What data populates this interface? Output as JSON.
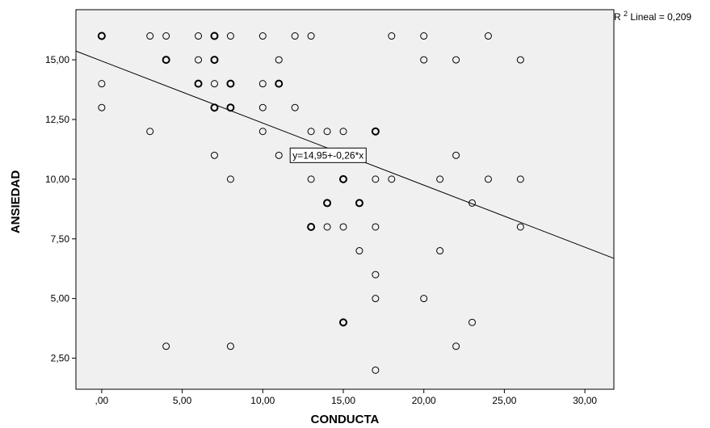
{
  "chart_data": {
    "type": "scatter",
    "xlabel": "CONDUCTA",
    "ylabel": "ANSIEDAD",
    "xlim": [
      -1.6,
      31.8
    ],
    "ylim": [
      1.2,
      17.1
    ],
    "x_ticks": [
      0,
      5,
      10,
      15,
      20,
      25,
      30
    ],
    "x_tick_labels": [
      ",00",
      "5,00",
      "10,00",
      "15,00",
      "20,00",
      "25,00",
      "30,00"
    ],
    "y_ticks": [
      2.5,
      5,
      7.5,
      10,
      12.5,
      15
    ],
    "y_tick_labels": [
      "2,50",
      "5,00",
      "7,50",
      "10,00",
      "12,50",
      "15,00"
    ],
    "grid": false,
    "plot_background": "#f0f0f0",
    "marker_color": "#000000",
    "fit_line": {
      "intercept": 14.95,
      "slope": -0.26,
      "color": "#000000"
    },
    "equation_label": "y=14,95+-0,26*x",
    "equation_anchor": {
      "x": 11.7,
      "y": 11
    },
    "r2_label": {
      "prefix": "R",
      "superscript": "2",
      "text": " Lineal = 0,209"
    },
    "points": [
      {
        "x": 0,
        "y": 16,
        "n": 2
      },
      {
        "x": 3,
        "y": 16,
        "n": 1
      },
      {
        "x": 4,
        "y": 16,
        "n": 1
      },
      {
        "x": 6,
        "y": 16,
        "n": 1
      },
      {
        "x": 7,
        "y": 16,
        "n": 3
      },
      {
        "x": 8,
        "y": 16,
        "n": 1
      },
      {
        "x": 10,
        "y": 16,
        "n": 1
      },
      {
        "x": 12,
        "y": 16,
        "n": 1
      },
      {
        "x": 13,
        "y": 16,
        "n": 1
      },
      {
        "x": 18,
        "y": 16,
        "n": 1
      },
      {
        "x": 20,
        "y": 16,
        "n": 1
      },
      {
        "x": 24,
        "y": 16,
        "n": 1
      },
      {
        "x": 4,
        "y": 15,
        "n": 2
      },
      {
        "x": 6,
        "y": 15,
        "n": 1
      },
      {
        "x": 7,
        "y": 15,
        "n": 2
      },
      {
        "x": 11,
        "y": 15,
        "n": 1
      },
      {
        "x": 20,
        "y": 15,
        "n": 1
      },
      {
        "x": 22,
        "y": 15,
        "n": 1
      },
      {
        "x": 26,
        "y": 15,
        "n": 1
      },
      {
        "x": 0,
        "y": 14,
        "n": 1
      },
      {
        "x": 6,
        "y": 14,
        "n": 2
      },
      {
        "x": 7,
        "y": 14,
        "n": 1
      },
      {
        "x": 8,
        "y": 14,
        "n": 2
      },
      {
        "x": 10,
        "y": 14,
        "n": 1
      },
      {
        "x": 11,
        "y": 14,
        "n": 2
      },
      {
        "x": 0,
        "y": 13,
        "n": 1
      },
      {
        "x": 7,
        "y": 13,
        "n": 2
      },
      {
        "x": 8,
        "y": 13,
        "n": 2
      },
      {
        "x": 10,
        "y": 13,
        "n": 1
      },
      {
        "x": 12,
        "y": 13,
        "n": 1
      },
      {
        "x": 3,
        "y": 12,
        "n": 1
      },
      {
        "x": 10,
        "y": 12,
        "n": 1
      },
      {
        "x": 13,
        "y": 12,
        "n": 1
      },
      {
        "x": 14,
        "y": 12,
        "n": 1
      },
      {
        "x": 15,
        "y": 12,
        "n": 1
      },
      {
        "x": 17,
        "y": 12,
        "n": 2
      },
      {
        "x": 7,
        "y": 11,
        "n": 1
      },
      {
        "x": 11,
        "y": 11,
        "n": 1
      },
      {
        "x": 22,
        "y": 11,
        "n": 1
      },
      {
        "x": 8,
        "y": 10,
        "n": 1
      },
      {
        "x": 13,
        "y": 10,
        "n": 1
      },
      {
        "x": 15,
        "y": 10,
        "n": 2
      },
      {
        "x": 17,
        "y": 10,
        "n": 1
      },
      {
        "x": 18,
        "y": 10,
        "n": 1
      },
      {
        "x": 21,
        "y": 10,
        "n": 1
      },
      {
        "x": 24,
        "y": 10,
        "n": 1
      },
      {
        "x": 26,
        "y": 10,
        "n": 1
      },
      {
        "x": 14,
        "y": 9,
        "n": 2
      },
      {
        "x": 16,
        "y": 9,
        "n": 2
      },
      {
        "x": 23,
        "y": 9,
        "n": 1
      },
      {
        "x": 13,
        "y": 8,
        "n": 2
      },
      {
        "x": 14,
        "y": 8,
        "n": 1
      },
      {
        "x": 15,
        "y": 8,
        "n": 1
      },
      {
        "x": 17,
        "y": 8,
        "n": 1
      },
      {
        "x": 26,
        "y": 8,
        "n": 1
      },
      {
        "x": 16,
        "y": 7,
        "n": 1
      },
      {
        "x": 21,
        "y": 7,
        "n": 1
      },
      {
        "x": 17,
        "y": 6,
        "n": 1
      },
      {
        "x": 17,
        "y": 5,
        "n": 1
      },
      {
        "x": 20,
        "y": 5,
        "n": 1
      },
      {
        "x": 15,
        "y": 4,
        "n": 2
      },
      {
        "x": 23,
        "y": 4,
        "n": 1
      },
      {
        "x": 4,
        "y": 3,
        "n": 1
      },
      {
        "x": 8,
        "y": 3,
        "n": 1
      },
      {
        "x": 22,
        "y": 3,
        "n": 1
      },
      {
        "x": 17,
        "y": 2,
        "n": 1
      }
    ]
  }
}
